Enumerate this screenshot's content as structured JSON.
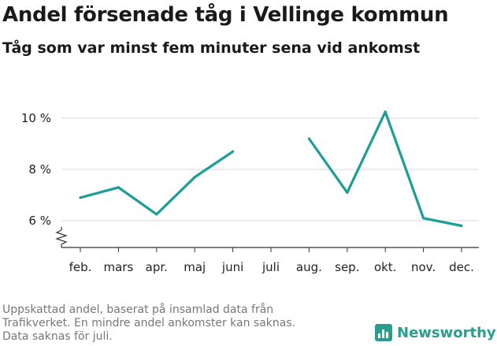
{
  "header": {
    "title": "Andel försenade tåg i Vellinge kommun",
    "subtitle": "Tåg som var minst fem minuter sena vid ankomst"
  },
  "footnote": {
    "lines": [
      "Uppskattad andel, baserat på insamlad data från",
      "Trafikverket. En mindre andel ankomster kan saknas.",
      "Data saknas för juli."
    ]
  },
  "brand": {
    "name": "Newsworthy",
    "color": "#2a9d8f"
  },
  "colors": {
    "line": "#1a9e96",
    "grid": "#d9d9d9",
    "axis": "#333333"
  },
  "chart_data": {
    "type": "line",
    "title": "Andel försenade tåg i Vellinge kommun",
    "subtitle": "Tåg som var minst fem minuter sena vid ankomst",
    "categories": [
      "feb.",
      "mars",
      "apr.",
      "maj",
      "juni",
      "juli",
      "aug.",
      "sep.",
      "okt.",
      "nov.",
      "dec."
    ],
    "values": [
      6.9,
      7.3,
      6.25,
      7.7,
      8.7,
      null,
      9.2,
      7.1,
      10.25,
      6.1,
      5.8
    ],
    "yticks": [
      6,
      8,
      10
    ],
    "ytick_labels": [
      "6 %",
      "8 %",
      "10 %"
    ],
    "ylim": [
      5.0,
      10.5
    ],
    "y_axis_break": true,
    "grid": true,
    "xlabel": "",
    "ylabel": ""
  }
}
